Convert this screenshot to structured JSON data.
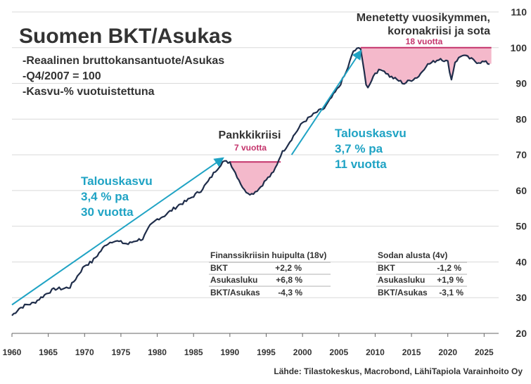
{
  "chart_data": {
    "type": "line",
    "title": "Suomen BKT/Asukas",
    "subtitle_lines": [
      "-Reaalinen bruttokansantuote/Asukas",
      "-Q4/2007 = 100",
      "-Kasvu-% vuotuistettuna"
    ],
    "xlabel": "",
    "ylabel": "",
    "xlim": [
      1960,
      2027
    ],
    "ylim": [
      20,
      110
    ],
    "xticks": [
      1960,
      1965,
      1970,
      1975,
      1980,
      1985,
      1990,
      1995,
      2000,
      2005,
      2010,
      2015,
      2020,
      2025
    ],
    "yticks": [
      20,
      30,
      40,
      50,
      60,
      70,
      80,
      90,
      100,
      110
    ],
    "series": [
      {
        "name": "BKT/Asukas",
        "color": "#1f2d4a",
        "x": [
          1960,
          1961,
          1962,
          1963,
          1964,
          1965,
          1966,
          1967,
          1968,
          1969,
          1970,
          1971,
          1972,
          1973,
          1974,
          1975,
          1976,
          1977,
          1978,
          1979,
          1980,
          1981,
          1982,
          1983,
          1984,
          1985,
          1986,
          1987,
          1988,
          1989,
          1990,
          1991,
          1992,
          1993,
          1994,
          1995,
          1996,
          1997,
          1998,
          1999,
          2000,
          2001,
          2002,
          2003,
          2004,
          2005,
          2006,
          2007,
          2008,
          2008.75,
          2009,
          2009.5,
          2010,
          2011,
          2012,
          2013,
          2014,
          2015,
          2016,
          2017,
          2018,
          2019,
          2020,
          2020.5,
          2021,
          2022,
          2023,
          2024,
          2025,
          2025.75
        ],
        "values": [
          25,
          27,
          28,
          28.5,
          30,
          31.5,
          32.5,
          32.5,
          33,
          36,
          39,
          40,
          42.5,
          45,
          46,
          45.5,
          45,
          46,
          46.5,
          50,
          52,
          53,
          54.5,
          56,
          57,
          58.5,
          60,
          62.5,
          65.5,
          68,
          68,
          64,
          60,
          59,
          60.5,
          63,
          65,
          70,
          73,
          76,
          79,
          80.5,
          82,
          83,
          86,
          89,
          93,
          99,
          100,
          90,
          89,
          91,
          93,
          94,
          92,
          91,
          90,
          91,
          92,
          95,
          96,
          97,
          96,
          91,
          96,
          98,
          97,
          96,
          96,
          95.5
        ]
      }
    ],
    "shaded_regions": [
      {
        "name": "Pankkikriisi",
        "from": 1990,
        "to": 1997,
        "baseline": 68,
        "label": "7 vuotta",
        "color": "#f4b9cb"
      },
      {
        "name": "Menetetty vuosikymmen",
        "from": 2008,
        "to": 2026,
        "baseline": 100,
        "label": "18 vuotta",
        "color": "#f4b9cb"
      }
    ],
    "arrows": [
      {
        "from": [
          1960,
          28
        ],
        "to": [
          1989,
          69
        ],
        "color": "#1fa3c4"
      },
      {
        "from": [
          1998.5,
          70
        ],
        "to": [
          2008,
          99
        ],
        "color": "#1fa3c4"
      }
    ],
    "annotations": {
      "crisis1_title": "Pankkikriisi",
      "crisis1_duration": "7 vuotta",
      "crisis2_title_line1": "Menetetty vuosikymmen,",
      "crisis2_title_line2": "koronakriisi ja sota",
      "crisis2_duration": "18 vuotta",
      "growth1_line1": "Talouskasvu",
      "growth1_line2": "3,4 % pa",
      "growth1_line3": "30 vuotta",
      "growth2_line1": "Talouskasvu",
      "growth2_line2": "3,7 % pa",
      "growth2_line3": "11 vuotta"
    },
    "tables": [
      {
        "title": "Finanssikriisin huipulta (18v)",
        "rows": [
          {
            "label": "BKT",
            "value": "+2,2 %"
          },
          {
            "label": "Asukasluku",
            "value": "+6,8 %"
          },
          {
            "label": "BKT/Asukas",
            "value": "-4,3 %"
          }
        ]
      },
      {
        "title": "Sodan alusta (4v)",
        "rows": [
          {
            "label": "BKT",
            "value": "-1,2 %"
          },
          {
            "label": "Asukasluku",
            "value": "+1,9 %"
          },
          {
            "label": "BKT/Asukas",
            "value": "-3,1 %"
          }
        ]
      }
    ],
    "source": "Lähde: Tilastokeskus, Macrobond, LähiTapiola Varainhoito Oy",
    "grid": true
  }
}
